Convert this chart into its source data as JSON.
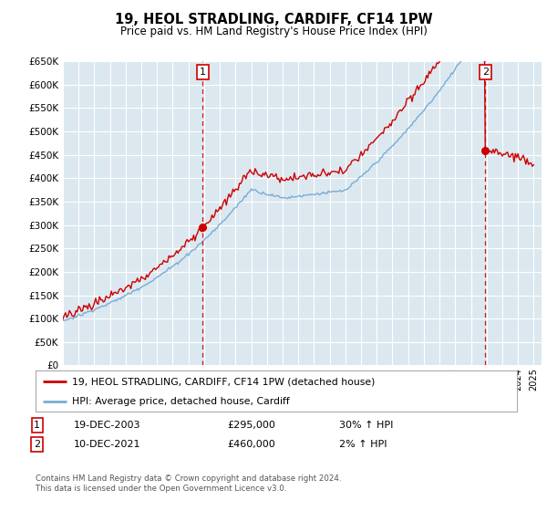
{
  "title": "19, HEOL STRADLING, CARDIFF, CF14 1PW",
  "subtitle": "Price paid vs. HM Land Registry's House Price Index (HPI)",
  "footer": "Contains HM Land Registry data © Crown copyright and database right 2024.\nThis data is licensed under the Open Government Licence v3.0.",
  "legend_line1": "19, HEOL STRADLING, CARDIFF, CF14 1PW (detached house)",
  "legend_line2": "HPI: Average price, detached house, Cardiff",
  "transaction1_date": "19-DEC-2003",
  "transaction1_price": "£295,000",
  "transaction1_hpi": "30% ↑ HPI",
  "transaction2_date": "10-DEC-2021",
  "transaction2_price": "£460,000",
  "transaction2_hpi": "2% ↑ HPI",
  "hpi_line_color": "#7aadd4",
  "price_line_color": "#cc0000",
  "bg_color": "#dce8f0",
  "grid_color": "#ffffff",
  "ylim": [
    0,
    650000
  ],
  "yticks": [
    0,
    50000,
    100000,
    150000,
    200000,
    250000,
    300000,
    350000,
    400000,
    450000,
    500000,
    550000,
    600000,
    650000
  ],
  "x_start_year": 1995,
  "x_end_year": 2025
}
